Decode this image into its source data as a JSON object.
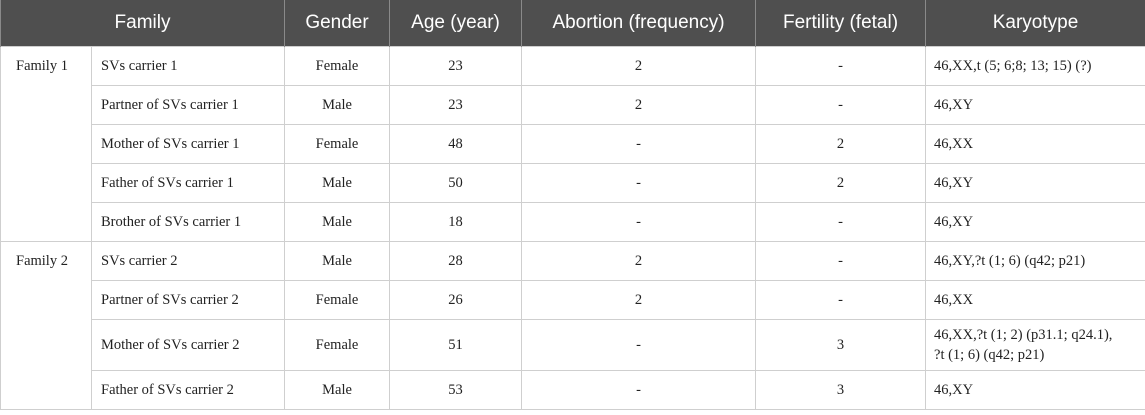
{
  "headers": [
    "Family",
    "Gender",
    "Age (year)",
    "Abortion (frequency)",
    "Fertility (fetal)",
    "Karyotype"
  ],
  "families": [
    {
      "name": "Family 1",
      "rows": [
        {
          "member": "SVs carrier 1",
          "gender": "Female",
          "age": "23",
          "abortion": "2",
          "fertility": "-",
          "karyotype": [
            "46,XX,t (5; 6;8; 13; 15) (?)"
          ]
        },
        {
          "member": "Partner of SVs carrier 1",
          "gender": "Male",
          "age": "23",
          "abortion": "2",
          "fertility": "-",
          "karyotype": [
            "46,XY"
          ]
        },
        {
          "member": "Mother of SVs carrier 1",
          "gender": "Female",
          "age": "48",
          "abortion": "-",
          "fertility": "2",
          "karyotype": [
            "46,XX"
          ]
        },
        {
          "member": "Father of SVs carrier 1",
          "gender": "Male",
          "age": "50",
          "abortion": "-",
          "fertility": "2",
          "karyotype": [
            "46,XY"
          ]
        },
        {
          "member": "Brother of SVs carrier 1",
          "gender": "Male",
          "age": "18",
          "abortion": "-",
          "fertility": "-",
          "karyotype": [
            "46,XY"
          ]
        }
      ]
    },
    {
      "name": "Family 2",
      "rows": [
        {
          "member": "SVs carrier 2",
          "gender": "Male",
          "age": "28",
          "abortion": "2",
          "fertility": "-",
          "karyotype": [
            "46,XY,?t (1; 6) (q42; p21)"
          ]
        },
        {
          "member": "Partner of SVs carrier 2",
          "gender": "Female",
          "age": "26",
          "abortion": "2",
          "fertility": "-",
          "karyotype": [
            "46,XX"
          ]
        },
        {
          "member": "Mother of SVs carrier 2",
          "gender": "Female",
          "age": "51",
          "abortion": "-",
          "fertility": "3",
          "karyotype": [
            "46,XX,?t (1; 2) (p31.1; q24.1),",
            "?t (1; 6) (q42; p21)"
          ]
        },
        {
          "member": "Father of SVs carrier 2",
          "gender": "Male",
          "age": "53",
          "abortion": "-",
          "fertility": "3",
          "karyotype": [
            "46,XY"
          ]
        }
      ]
    }
  ]
}
